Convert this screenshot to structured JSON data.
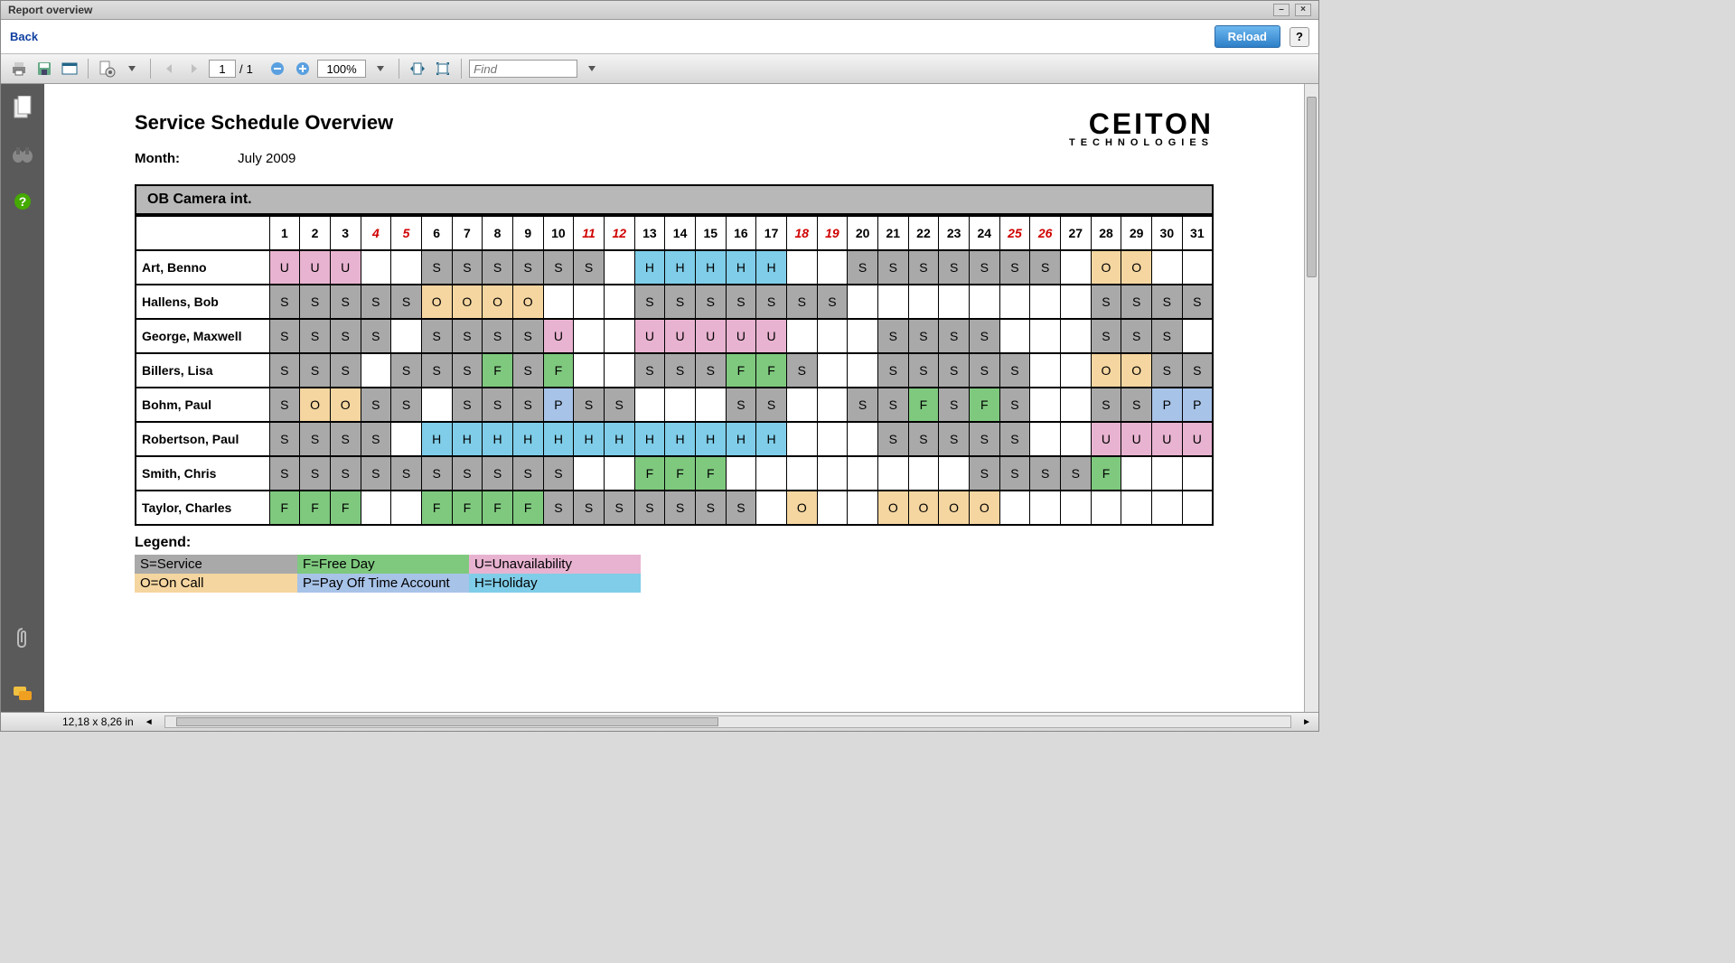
{
  "window": {
    "title": "Report overview"
  },
  "topbar": {
    "back": "Back",
    "reload": "Reload",
    "help": "?"
  },
  "toolbar": {
    "page_current": "1",
    "page_total": "1",
    "page_sep": "/",
    "zoom": "100%",
    "find_placeholder": "Find"
  },
  "report": {
    "title": "Service Schedule Overview",
    "month_label": "Month:",
    "month_value": "July 2009",
    "section": "OB Camera int.",
    "logo_main": "CEITON",
    "logo_sub": "TECHNOLOGIES"
  },
  "days": [
    1,
    2,
    3,
    4,
    5,
    6,
    7,
    8,
    9,
    10,
    11,
    12,
    13,
    14,
    15,
    16,
    17,
    18,
    19,
    20,
    21,
    22,
    23,
    24,
    25,
    26,
    27,
    28,
    29,
    30,
    31
  ],
  "weekends": [
    4,
    5,
    11,
    12,
    18,
    19,
    25,
    26
  ],
  "colors": {
    "S": "#a9a9a9",
    "F": "#7fc97f",
    "U": "#e8b3d0",
    "O": "#f5d6a0",
    "P": "#a8c3e8",
    "H": "#7fcde8",
    "empty": "#ffffff",
    "legend_bg": {
      "S": "#a9a9a9",
      "F": "#7fc97f",
      "U": "#e8b3d0",
      "O": "#f5d6a0",
      "P": "#a8c3e8",
      "H": "#7fcde8"
    }
  },
  "legend": {
    "title": "Legend:",
    "rows": [
      [
        {
          "code": "S",
          "text": "S=Service"
        },
        {
          "code": "F",
          "text": "F=Free Day"
        },
        {
          "code": "U",
          "text": "U=Unavailability"
        }
      ],
      [
        {
          "code": "O",
          "text": "O=On Call"
        },
        {
          "code": "P",
          "text": "P=Pay Off Time Account"
        },
        {
          "code": "H",
          "text": "H=Holiday"
        }
      ]
    ]
  },
  "employees": [
    {
      "name": "Art, Benno",
      "cells": [
        "U",
        "U",
        "U",
        "",
        "",
        "S",
        "S",
        "S",
        "S",
        "S",
        "S",
        "",
        "H",
        "H",
        "H",
        "H",
        "H",
        "",
        "",
        "S",
        "S",
        "S",
        "S",
        "S",
        "S",
        "S",
        "",
        "O",
        "O",
        "",
        ""
      ]
    },
    {
      "name": "Hallens, Bob",
      "cells": [
        "S",
        "S",
        "S",
        "S",
        "S",
        "O",
        "O",
        "O",
        "O",
        "",
        "",
        "",
        "S",
        "S",
        "S",
        "S",
        "S",
        "S",
        "S",
        "",
        "",
        "",
        "",
        "",
        "",
        "",
        "",
        "S",
        "S",
        "S",
        "S"
      ]
    },
    {
      "name": "George, Maxwell",
      "cells": [
        "S",
        "S",
        "S",
        "S",
        "",
        "S",
        "S",
        "S",
        "S",
        "U",
        "",
        "",
        "U",
        "U",
        "U",
        "U",
        "U",
        "",
        "",
        "",
        "S",
        "S",
        "S",
        "S",
        "",
        "",
        "",
        "S",
        "S",
        "S",
        ""
      ]
    },
    {
      "name": "Billers, Lisa",
      "cells": [
        "S",
        "S",
        "S",
        "",
        "S",
        "S",
        "S",
        "F",
        "S",
        "F",
        "",
        "",
        "S",
        "S",
        "S",
        "F",
        "F",
        "S",
        "",
        "",
        "S",
        "S",
        "S",
        "S",
        "S",
        "",
        "",
        "O",
        "O",
        "S",
        "S"
      ]
    },
    {
      "name": "Bohm, Paul",
      "cells": [
        "S",
        "O",
        "O",
        "S",
        "S",
        "",
        "S",
        "S",
        "S",
        "P",
        "S",
        "S",
        "",
        "",
        "",
        "S",
        "S",
        "",
        "",
        "S",
        "S",
        "F",
        "S",
        "F",
        "S",
        "",
        "",
        "S",
        "S",
        "P",
        "P"
      ]
    },
    {
      "name": "Robertson, Paul",
      "cells": [
        "S",
        "S",
        "S",
        "S",
        "",
        "H",
        "H",
        "H",
        "H",
        "H",
        "H",
        "H",
        "H",
        "H",
        "H",
        "H",
        "H",
        "",
        "",
        "",
        "S",
        "S",
        "S",
        "S",
        "S",
        "",
        "",
        "U",
        "U",
        "U",
        "U"
      ]
    },
    {
      "name": "Smith, Chris",
      "cells": [
        "S",
        "S",
        "S",
        "S",
        "S",
        "S",
        "S",
        "S",
        "S",
        "S",
        "",
        "",
        "F",
        "F",
        "F",
        "",
        "",
        "",
        "",
        "",
        "",
        "",
        "",
        "S",
        "S",
        "S",
        "S",
        "F",
        "",
        "",
        ""
      ]
    },
    {
      "name": "Taylor, Charles",
      "cells": [
        "F",
        "F",
        "F",
        "",
        "",
        "F",
        "F",
        "F",
        "F",
        "S",
        "S",
        "S",
        "S",
        "S",
        "S",
        "S",
        "",
        "O",
        "",
        "",
        "O",
        "O",
        "O",
        "O",
        "",
        "",
        "",
        "",
        "",
        "",
        ""
      ]
    }
  ],
  "statusbar": {
    "dims": "12,18 x 8,26 in"
  }
}
